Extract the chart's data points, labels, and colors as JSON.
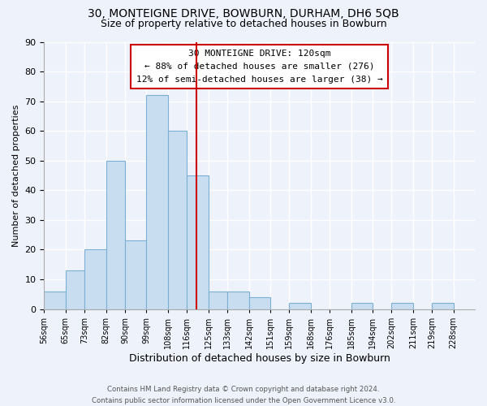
{
  "title_line1": "30, MONTEIGNE DRIVE, BOWBURN, DURHAM, DH6 5QB",
  "title_line2": "Size of property relative to detached houses in Bowburn",
  "xlabel": "Distribution of detached houses by size in Bowburn",
  "ylabel": "Number of detached properties",
  "bar_color": "#c9ddf0",
  "bar_edge_color": "#7ab0d4",
  "bin_labels": [
    "56sqm",
    "65sqm",
    "73sqm",
    "82sqm",
    "90sqm",
    "99sqm",
    "108sqm",
    "116sqm",
    "125sqm",
    "133sqm",
    "142sqm",
    "151sqm",
    "159sqm",
    "168sqm",
    "176sqm",
    "185sqm",
    "194sqm",
    "202sqm",
    "211sqm",
    "219sqm",
    "228sqm"
  ],
  "bin_edges": [
    56,
    65,
    73,
    82,
    90,
    99,
    108,
    116,
    125,
    133,
    142,
    151,
    159,
    168,
    176,
    185,
    194,
    202,
    211,
    219,
    228
  ],
  "counts": [
    6,
    13,
    20,
    50,
    23,
    72,
    60,
    45,
    6,
    6,
    4,
    0,
    2,
    0,
    0,
    2,
    0,
    2,
    0,
    2
  ],
  "ylim": [
    0,
    90
  ],
  "yticks": [
    0,
    10,
    20,
    30,
    40,
    50,
    60,
    70,
    80,
    90
  ],
  "property_size": 120,
  "vline_color": "#cc0000",
  "annotation_text_line1": "30 MONTEIGNE DRIVE: 120sqm",
  "annotation_text_line2": "← 88% of detached houses are smaller (276)",
  "annotation_text_line3": "12% of semi-detached houses are larger (38) →",
  "annotation_box_color": "#ffffff",
  "annotation_box_edge": "#cc0000",
  "footer_line1": "Contains HM Land Registry data © Crown copyright and database right 2024.",
  "footer_line2": "Contains public sector information licensed under the Open Government Licence v3.0.",
  "bg_color": "#eef2fb"
}
